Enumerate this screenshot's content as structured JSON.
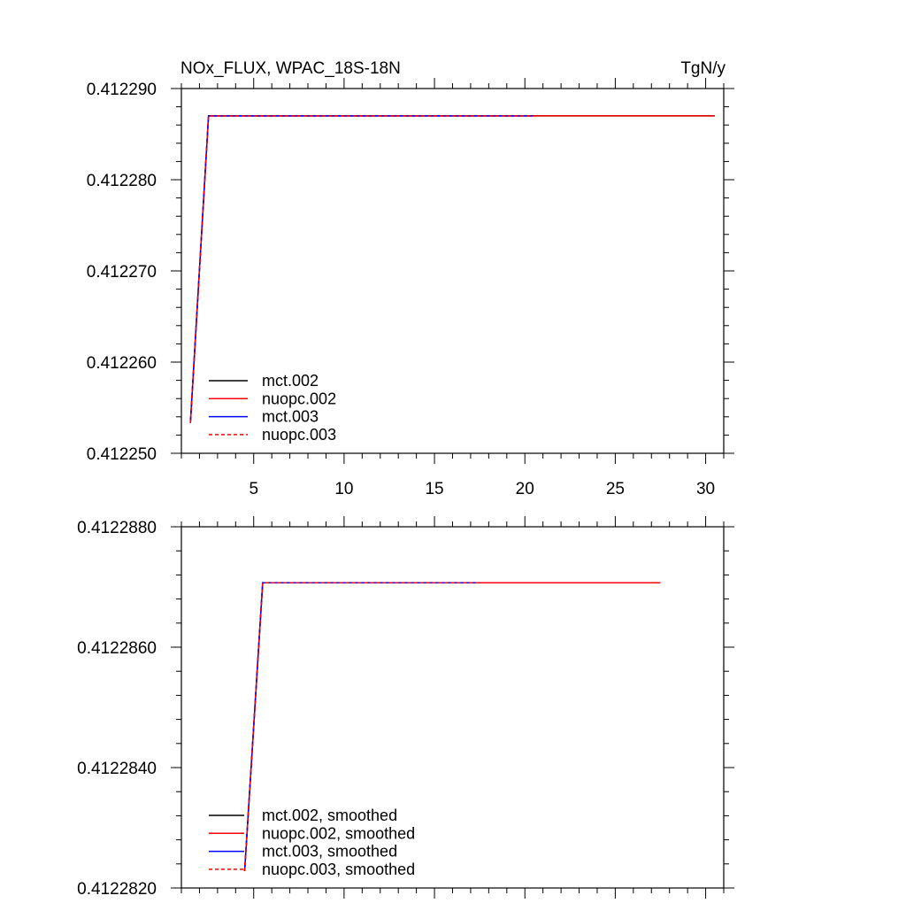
{
  "chart_data": [
    {
      "type": "line",
      "title": "NOx_FLUX, WPAC_18S-18N",
      "units": "TgN/y",
      "xlim": [
        1,
        31
      ],
      "ylim": [
        0.41225,
        0.41229
      ],
      "x_ticks": [
        5,
        10,
        15,
        20,
        25,
        30
      ],
      "x_tick_labels": [
        "5",
        "10",
        "15",
        "20",
        "25",
        "30"
      ],
      "y_ticks": [
        0.41225,
        0.41226,
        0.41227,
        0.41228,
        0.41229
      ],
      "y_tick_labels": [
        "0.412250",
        "0.412260",
        "0.412270",
        "0.412280",
        "0.412290"
      ],
      "legend_position": "bottom-left",
      "series": [
        {
          "name": "mct.002",
          "color": "#000000",
          "dash": "solid",
          "x": [
            1.5,
            2.5,
            30.5
          ],
          "y": [
            0.4122533,
            0.412287,
            0.412287
          ]
        },
        {
          "name": "nuopc.002",
          "color": "#ff0000",
          "dash": "solid",
          "x": [
            1.5,
            2.5,
            30.5
          ],
          "y": [
            0.4122533,
            0.412287,
            0.412287
          ]
        },
        {
          "name": "mct.003",
          "color": "#0000ff",
          "dash": "solid",
          "x": [
            1.5,
            2.5,
            20.5
          ],
          "y": [
            0.4122533,
            0.412287,
            0.412287
          ]
        },
        {
          "name": "nuopc.003",
          "color": "#ff0000",
          "dash": "dashed",
          "x": [
            1.5,
            2.5,
            20.5
          ],
          "y": [
            0.4122533,
            0.412287,
            0.412287
          ]
        }
      ]
    },
    {
      "type": "line",
      "title": "",
      "units": "",
      "xlim": [
        1,
        31
      ],
      "ylim": [
        0.412282,
        0.412288
      ],
      "x_ticks": [
        5,
        10,
        15,
        20,
        25,
        30
      ],
      "x_tick_labels": [],
      "y_ticks": [
        0.412282,
        0.412284,
        0.412286,
        0.412288
      ],
      "y_tick_labels": [
        "0.4122820",
        "0.4122840",
        "0.4122860",
        "0.4122880"
      ],
      "legend_position": "bottom-left",
      "series": [
        {
          "name": "mct.002, smoothed",
          "color": "#000000",
          "dash": "solid",
          "x": [
            4.5,
            5.5,
            27.5
          ],
          "y": [
            0.41228228,
            0.41228707,
            0.41228707
          ]
        },
        {
          "name": "nuopc.002, smoothed",
          "color": "#ff0000",
          "dash": "solid",
          "x": [
            4.5,
            5.5,
            27.5
          ],
          "y": [
            0.41228228,
            0.41228707,
            0.41228707
          ]
        },
        {
          "name": "mct.003, smoothed",
          "color": "#0000ff",
          "dash": "solid",
          "x": [
            4.5,
            5.5,
            17.5
          ],
          "y": [
            0.41228228,
            0.41228707,
            0.41228707
          ]
        },
        {
          "name": "nuopc.003, smoothed",
          "color": "#ff0000",
          "dash": "dashed",
          "x": [
            4.5,
            5.5,
            17.5
          ],
          "y": [
            0.41228228,
            0.41228707,
            0.41228707
          ]
        }
      ]
    }
  ]
}
